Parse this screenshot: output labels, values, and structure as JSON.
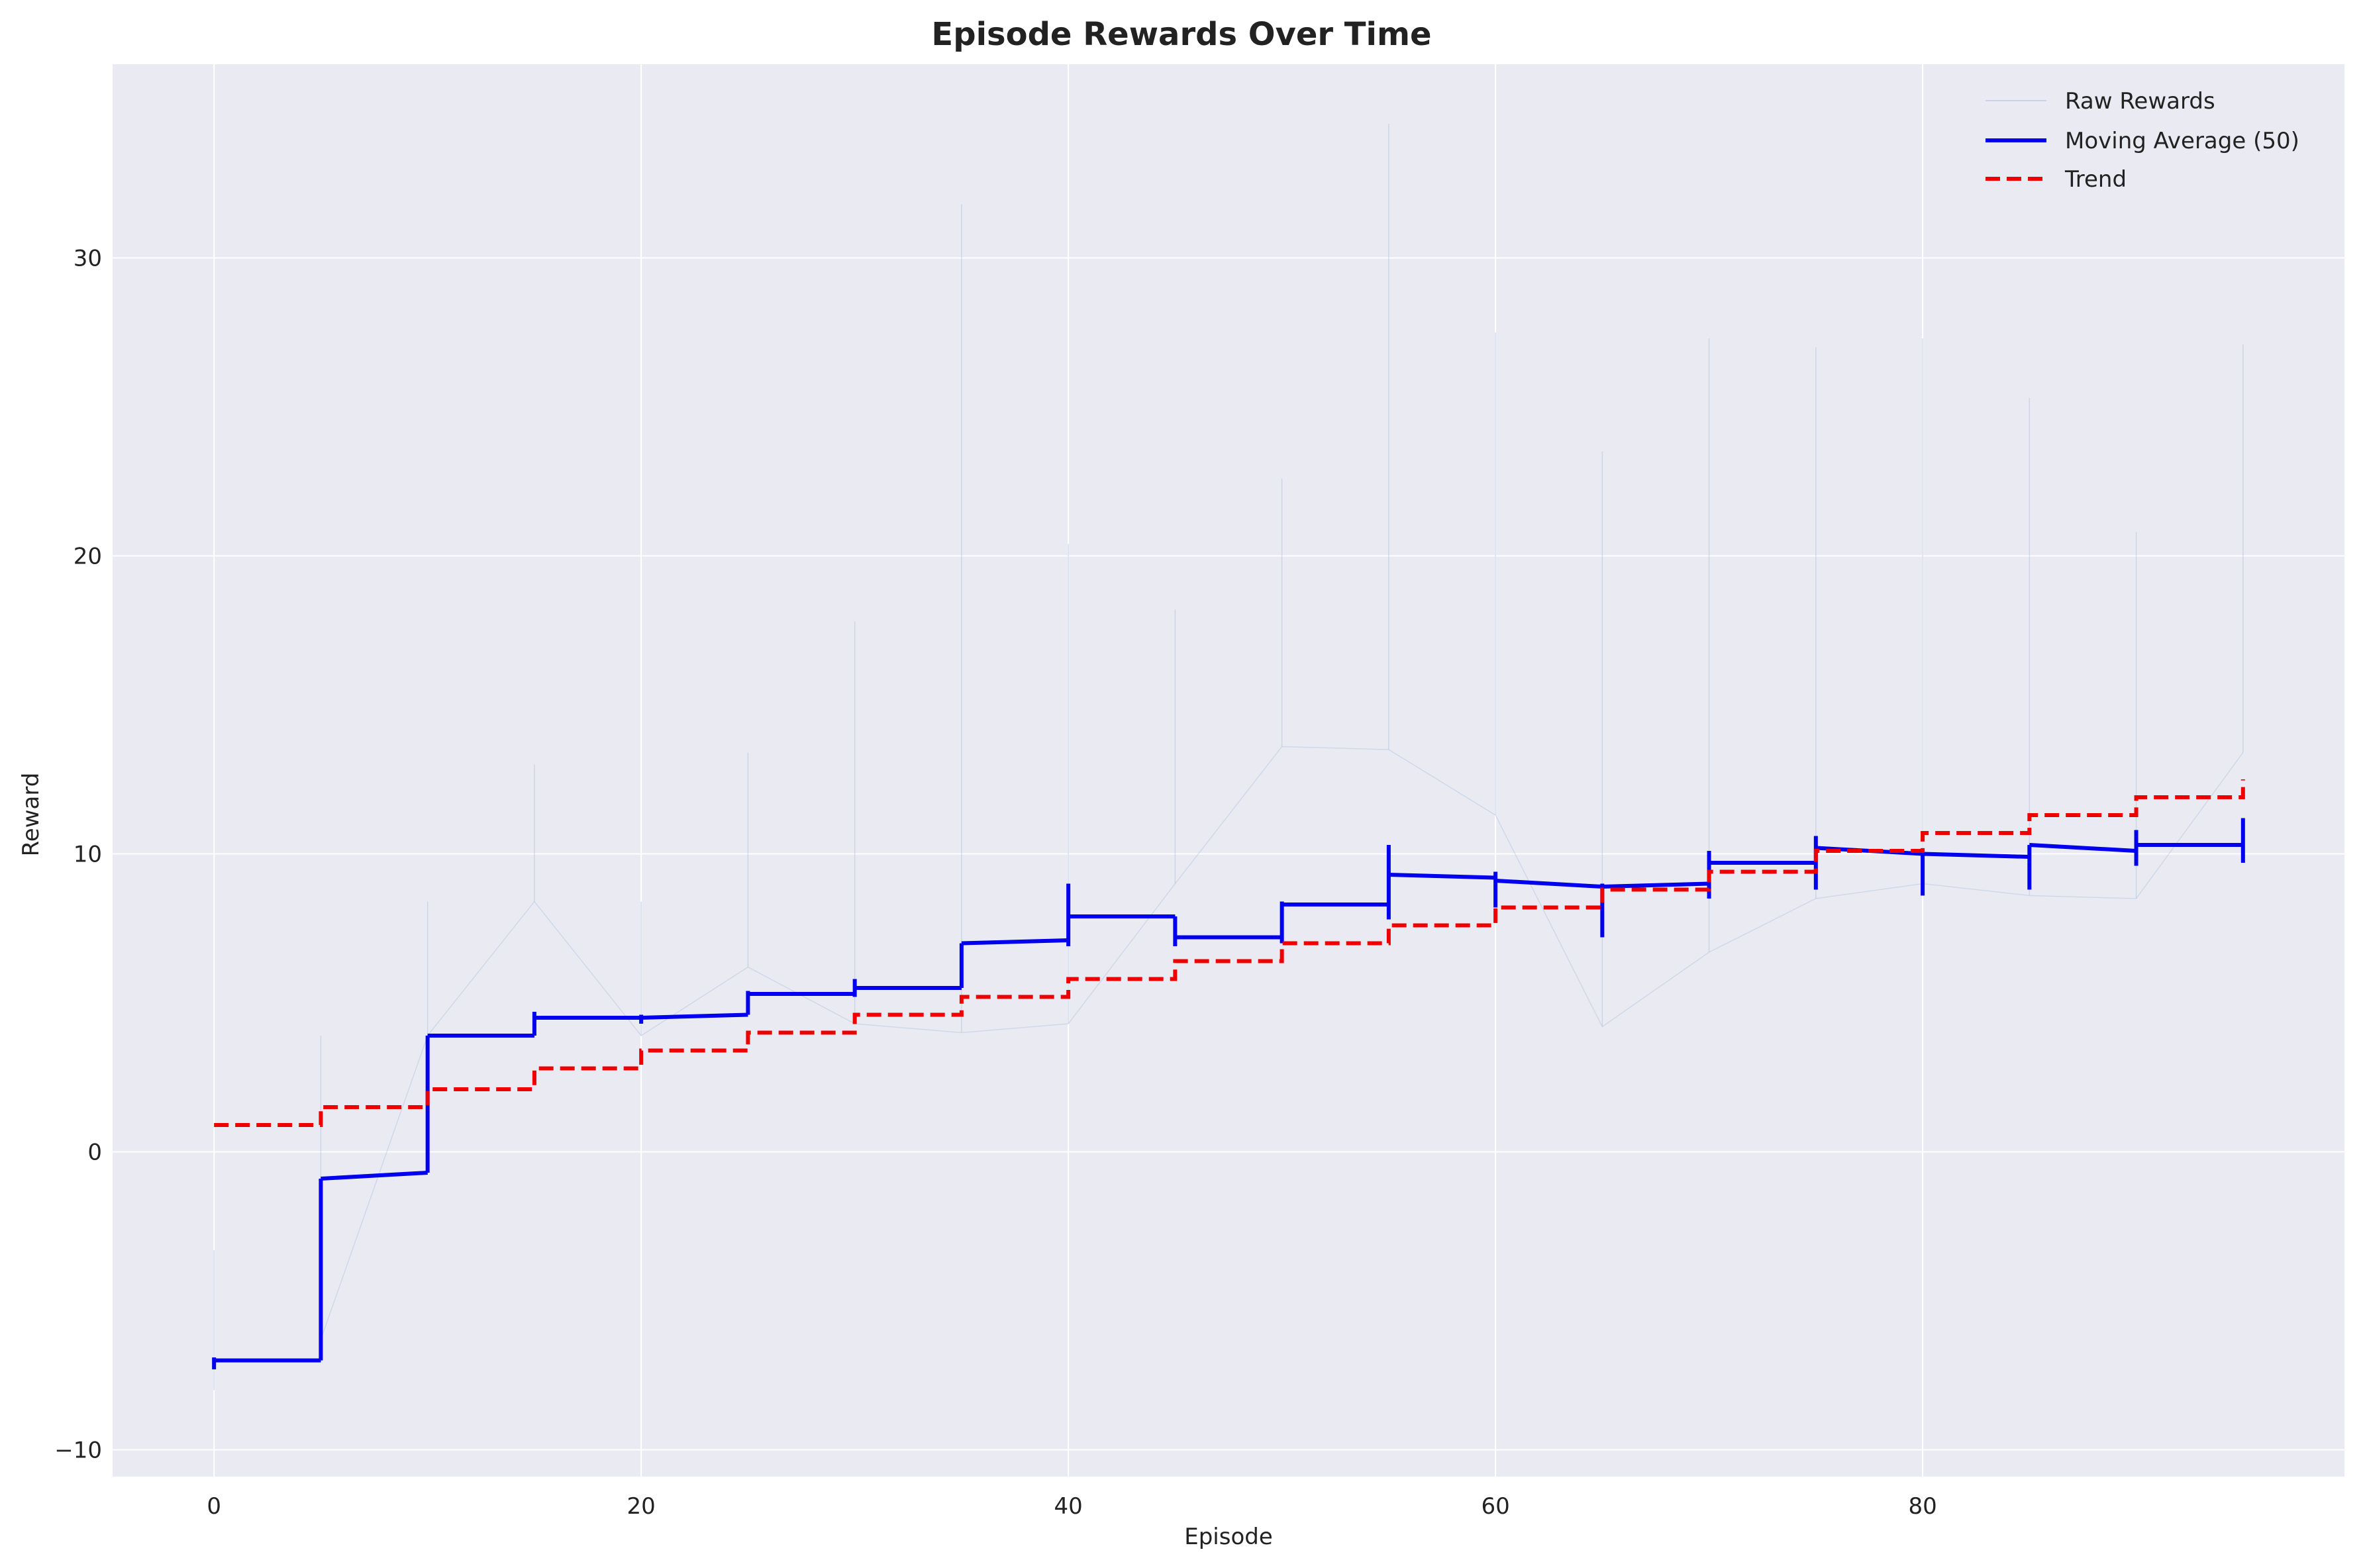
{
  "chart_data": {
    "type": "line",
    "title": "Episode Rewards Over Time",
    "xlabel": "Episode",
    "ylabel": "Reward",
    "xlim": [
      -4.75,
      99.75
    ],
    "ylim": [
      -10.9,
      36.5
    ],
    "xticks": [
      0,
      20,
      40,
      60,
      80
    ],
    "yticks": [
      -10,
      0,
      10,
      20,
      30
    ],
    "grid": true,
    "legend_position": "top-right",
    "colors": {
      "background": "#eaeaf2",
      "grid": "#ffffff",
      "raw": "#b0c4de",
      "moving_average": "#0000ee",
      "trend": "#ee0000"
    },
    "legend": [
      "Raw Rewards",
      "Moving Average (50)",
      "Trend"
    ],
    "series": [
      {
        "name": "Raw Rewards",
        "style": "thin",
        "x": [
          0,
          0,
          5,
          5,
          10,
          10,
          15,
          15,
          20,
          20,
          25,
          25,
          30,
          30,
          35,
          35,
          40,
          40,
          45,
          45,
          50,
          50,
          55,
          55,
          60,
          60,
          65,
          65,
          70,
          70,
          75,
          75,
          80,
          80,
          85,
          85,
          90,
          90,
          95,
          95
        ],
        "y": [
          -8,
          -3.3,
          -6.3,
          3.9,
          3.9,
          8.4,
          8.4,
          13.0,
          3.9,
          8.4,
          6.2,
          13.4,
          4.3,
          17.8,
          4.0,
          31.8,
          4.3,
          20.4,
          9.0,
          18.2,
          13.6,
          22.6,
          13.5,
          34.5,
          11.3,
          27.5,
          4.2,
          23.5,
          6.7,
          27.3,
          8.5,
          27.0,
          9.0,
          27.3,
          8.6,
          25.3,
          8.5,
          20.8,
          13.4,
          27.1
        ]
      },
      {
        "name": "Moving Average (50)",
        "style": "step",
        "segments": [
          {
            "x": [
              0,
              5
            ],
            "y": [
              -7.0,
              -7.0
            ],
            "jump": [
              -7.3,
              -6.9
            ]
          },
          {
            "x": [
              5,
              10
            ],
            "y": [
              -0.9,
              -0.7
            ],
            "jump": [
              -7.0,
              -0.9
            ]
          },
          {
            "x": [
              10,
              15
            ],
            "y": [
              3.9,
              3.9
            ],
            "jump": [
              -0.7,
              3.9
            ]
          },
          {
            "x": [
              15,
              20
            ],
            "y": [
              4.5,
              4.5
            ],
            "jump": [
              3.9,
              4.7
            ]
          },
          {
            "x": [
              20,
              25
            ],
            "y": [
              4.5,
              4.6
            ],
            "jump": [
              4.3,
              4.6
            ]
          },
          {
            "x": [
              25,
              30
            ],
            "y": [
              5.3,
              5.3
            ],
            "jump": [
              4.6,
              5.4
            ]
          },
          {
            "x": [
              30,
              35
            ],
            "y": [
              5.5,
              5.5
            ],
            "jump": [
              5.2,
              5.8
            ]
          },
          {
            "x": [
              35,
              40
            ],
            "y": [
              7.0,
              7.1
            ],
            "jump": [
              5.5,
              7.0
            ]
          },
          {
            "x": [
              40,
              45
            ],
            "y": [
              7.9,
              7.9
            ],
            "jump": [
              6.9,
              9.0
            ]
          },
          {
            "x": [
              45,
              50
            ],
            "y": [
              7.2,
              7.2
            ],
            "jump": [
              6.9,
              7.9
            ]
          },
          {
            "x": [
              50,
              55
            ],
            "y": [
              8.3,
              8.3
            ],
            "jump": [
              7.0,
              8.4
            ]
          },
          {
            "x": [
              55,
              60
            ],
            "y": [
              9.3,
              9.2
            ],
            "jump": [
              7.8,
              10.3
            ]
          },
          {
            "x": [
              60,
              65
            ],
            "y": [
              9.1,
              8.9
            ],
            "jump": [
              8.2,
              9.4
            ]
          },
          {
            "x": [
              65,
              70
            ],
            "y": [
              8.9,
              9.0
            ],
            "jump": [
              7.2,
              9.0
            ]
          },
          {
            "x": [
              70,
              75
            ],
            "y": [
              9.7,
              9.7
            ],
            "jump": [
              8.5,
              10.1
            ]
          },
          {
            "x": [
              75,
              80
            ],
            "y": [
              10.2,
              10.0
            ],
            "jump": [
              8.8,
              10.6
            ]
          },
          {
            "x": [
              80,
              85
            ],
            "y": [
              10.0,
              9.9
            ],
            "jump": [
              8.6,
              10.0
            ]
          },
          {
            "x": [
              85,
              90
            ],
            "y": [
              10.3,
              10.1
            ],
            "jump": [
              8.8,
              10.3
            ]
          },
          {
            "x": [
              90,
              95
            ],
            "y": [
              10.3,
              10.3
            ],
            "jump": [
              9.6,
              10.8
            ]
          },
          {
            "x": [
              95,
              95
            ],
            "y": [
              10.3,
              10.3
            ],
            "jump": [
              9.7,
              11.2
            ]
          }
        ]
      },
      {
        "name": "Trend",
        "style": "dashed-step",
        "x": [
          0,
          5,
          5,
          10,
          10,
          15,
          15,
          20,
          20,
          25,
          25,
          30,
          30,
          35,
          35,
          40,
          40,
          45,
          45,
          50,
          50,
          55,
          55,
          60,
          60,
          65,
          65,
          70,
          70,
          75,
          75,
          80,
          80,
          85,
          85,
          90,
          90,
          95,
          95
        ],
        "y": [
          0.9,
          0.9,
          1.5,
          1.5,
          2.1,
          2.1,
          2.8,
          2.8,
          3.4,
          3.4,
          4.0,
          4.0,
          4.6,
          4.6,
          5.2,
          5.2,
          5.8,
          5.8,
          6.4,
          6.4,
          7.0,
          7.0,
          7.6,
          7.6,
          8.2,
          8.2,
          8.8,
          8.8,
          9.4,
          9.4,
          10.1,
          10.1,
          10.7,
          10.7,
          11.3,
          11.3,
          11.9,
          11.9,
          12.5
        ]
      }
    ]
  }
}
